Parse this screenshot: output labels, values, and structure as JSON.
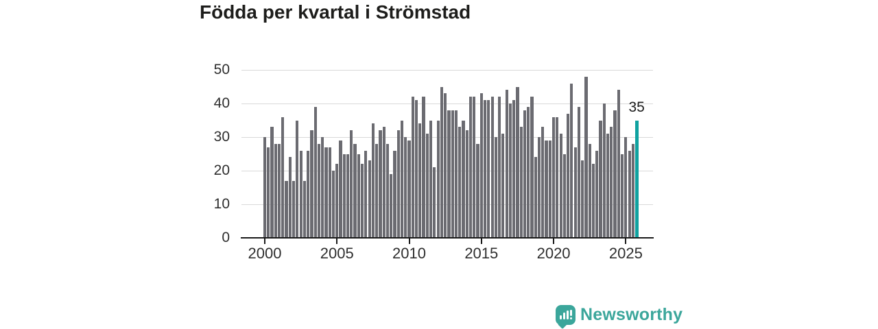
{
  "title": "Födda per kvartal i Strömstad",
  "annotation": {
    "value_label": "35"
  },
  "branding": {
    "name": "Newsworthy",
    "color": "#3ba69b"
  },
  "chart_data": {
    "type": "bar",
    "title": "Födda per kvartal i Strömstad",
    "xlabel": "",
    "ylabel": "",
    "x_unit": "quarter",
    "start_year": 2000,
    "start_quarter": 1,
    "x_tick_labels": [
      "2000",
      "2005",
      "2010",
      "2015",
      "2020",
      "2025"
    ],
    "y_ticks": [
      0,
      10,
      20,
      30,
      40,
      50
    ],
    "ylim": [
      0,
      50
    ],
    "grid": "horizontal",
    "legend": "none",
    "bar_color": "#6b6b71",
    "highlight_color": "#10a2a0",
    "highlight_last": true,
    "highlight_value": 35,
    "values": [
      30,
      27,
      33,
      28,
      28,
      36,
      17,
      24,
      17,
      35,
      26,
      17,
      26,
      32,
      39,
      28,
      30,
      27,
      27,
      20,
      22,
      29,
      25,
      25,
      32,
      28,
      25,
      22,
      26,
      23,
      34,
      28,
      32,
      33,
      28,
      19,
      26,
      32,
      35,
      30,
      29,
      42,
      41,
      34,
      42,
      31,
      35,
      21,
      35,
      45,
      43,
      38,
      38,
      38,
      33,
      35,
      32,
      42,
      42,
      28,
      43,
      41,
      41,
      42,
      30,
      42,
      31,
      44,
      40,
      41,
      45,
      33,
      38,
      39,
      42,
      24,
      30,
      33,
      29,
      29,
      36,
      36,
      31,
      25,
      37,
      46,
      27,
      39,
      23,
      48,
      28,
      22,
      26,
      35,
      40,
      31,
      33,
      38,
      44,
      25,
      30,
      26,
      28,
      35
    ]
  }
}
